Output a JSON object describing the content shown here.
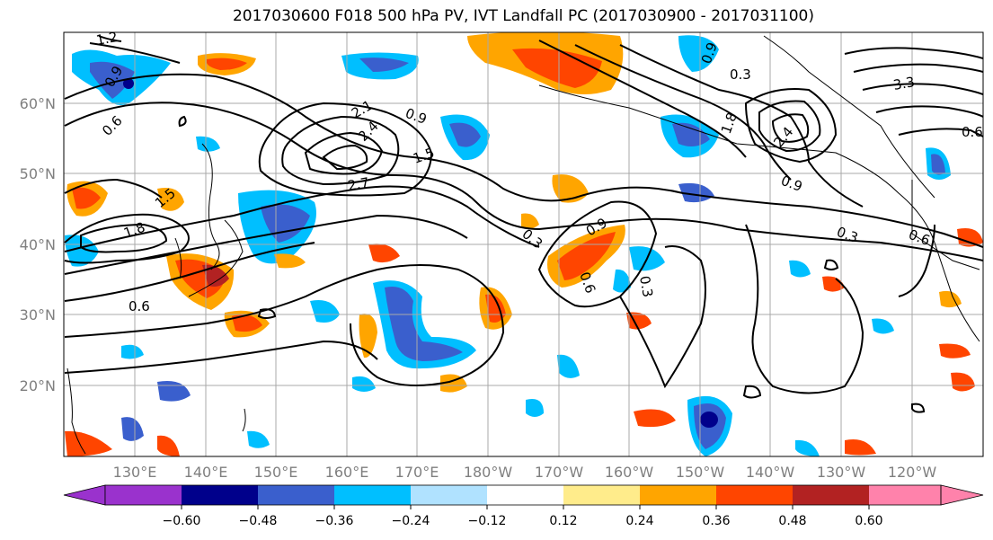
{
  "title": "2017030600 F018 500 hPa PV, IVT Landfall PC (2017030900 - 2017031100)",
  "map": {
    "lat_labels": [
      "60°N",
      "50°N",
      "40°N",
      "30°N",
      "20°N"
    ],
    "lon_labels": [
      "130°E",
      "140°E",
      "150°E",
      "160°E",
      "170°E",
      "180°W",
      "170°W",
      "160°W",
      "150°W",
      "140°W",
      "130°W",
      "120°W"
    ],
    "contour_labels": [
      "1.2",
      "0.9",
      "0.6",
      "1.5",
      "1.8",
      "2.1",
      "2.4",
      "2.7",
      "0.3",
      "1.5",
      "0.9",
      "0.6",
      "0.3",
      "0.9",
      "0.6",
      "0.3",
      "0.6",
      "0.6",
      "0.9",
      "0.3",
      "1.8",
      "2.4",
      "0.9",
      "3.3"
    ]
  },
  "colorbar": {
    "tick_labels": [
      "−0.60",
      "−0.48",
      "−0.36",
      "−0.24",
      "−0.12",
      "0.12",
      "0.24",
      "0.36",
      "0.48",
      "0.60"
    ],
    "colors": [
      "#9a32cd",
      "#00008b",
      "#3a5fcd",
      "#00bfff",
      "#b0e2ff",
      "#ffffff",
      "#ffec8b",
      "#ffa500",
      "#ff4500",
      "#b22222",
      "#ff82ab"
    ]
  },
  "colors": {
    "positive_strong": "#b22222",
    "positive_mid": "#ff4500",
    "positive_weak": "#ffa500",
    "positive_faint": "#ffec8b",
    "negative_strong": "#00008b",
    "negative_mid": "#3a5fcd",
    "negative_weak": "#00bfff",
    "negative_faint": "#b0e2ff"
  }
}
